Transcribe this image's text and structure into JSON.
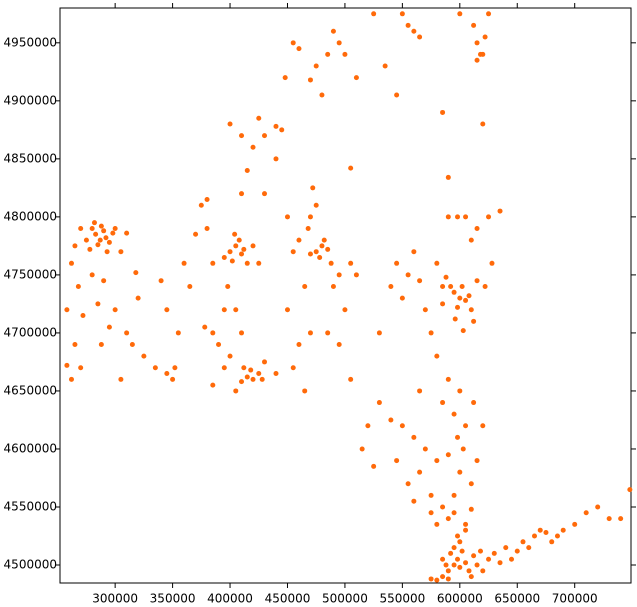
{
  "chart_data": {
    "type": "scatter",
    "xlim": [
      252000,
      749000
    ],
    "ylim": [
      4484500,
      4980000
    ],
    "xticks": [
      300000,
      350000,
      400000,
      450000,
      500000,
      550000,
      600000,
      650000,
      700000
    ],
    "yticks": [
      4500000,
      4550000,
      4600000,
      4650000,
      4700000,
      4750000,
      4800000,
      4850000,
      4900000,
      4950000
    ],
    "x": [
      283000,
      287000,
      290000,
      285000,
      292000,
      280000,
      295000,
      288000,
      278000,
      298000,
      282000,
      293000,
      275000,
      300000,
      270000,
      265000,
      310000,
      305000,
      262000,
      268000,
      272000,
      258000,
      265000,
      258000,
      262000,
      270000,
      280000,
      290000,
      285000,
      295000,
      288000,
      300000,
      310000,
      318000,
      320000,
      305000,
      315000,
      325000,
      335000,
      345000,
      350000,
      352000,
      340000,
      345000,
      355000,
      360000,
      365000,
      370000,
      375000,
      380000,
      385000,
      378000,
      385000,
      390000,
      395000,
      385000,
      400000,
      405000,
      410000,
      402000,
      408000,
      395000,
      412000,
      404000,
      415000,
      420000,
      398000,
      405000,
      410000,
      400000,
      395000,
      425000,
      415000,
      420000,
      425000,
      418000,
      410000,
      428000,
      412000,
      430000,
      405000,
      440000,
      400000,
      410000,
      420000,
      425000,
      430000,
      440000,
      445000,
      448000,
      415000,
      430000,
      410000,
      380000,
      440000,
      450000,
      455000,
      460000,
      465000,
      470000,
      460000,
      455000,
      450000,
      465000,
      470000,
      472000,
      468000,
      475000,
      475000,
      480000,
      478000,
      485000,
      470000,
      482000,
      488000,
      495000,
      490000,
      500000,
      485000,
      495000,
      505000,
      505000,
      510000,
      455000,
      460000,
      470000,
      475000,
      480000,
      485000,
      490000,
      495000,
      500000,
      505000,
      510000,
      525000,
      535000,
      545000,
      550000,
      555000,
      560000,
      565000,
      585000,
      590000,
      600000,
      612000,
      615000,
      618000,
      620000,
      622000,
      625000,
      615000,
      620000,
      530000,
      540000,
      545000,
      550000,
      555000,
      560000,
      565000,
      570000,
      575000,
      580000,
      585000,
      590000,
      598000,
      605000,
      610000,
      615000,
      625000,
      635000,
      628000,
      622000,
      595000,
      600000,
      605000,
      598000,
      602000,
      608000,
      592000,
      610000,
      588000,
      615000,
      596000,
      603000,
      585000,
      612000,
      580000,
      590000,
      600000,
      585000,
      595000,
      605000,
      598000,
      603000,
      590000,
      580000,
      570000,
      560000,
      550000,
      540000,
      530000,
      520000,
      515000,
      525000,
      545000,
      555000,
      565000,
      575000,
      585000,
      595000,
      610000,
      615000,
      620000,
      612000,
      600000,
      590000,
      595000,
      605000,
      610000,
      580000,
      575000,
      560000,
      565000,
      585000,
      588000,
      590000,
      592000,
      595000,
      598000,
      600000,
      602000,
      605000,
      600000,
      595000,
      590000,
      585000,
      580000,
      575000,
      608000,
      612000,
      615000,
      618000,
      620000,
      625000,
      630000,
      635000,
      640000,
      645000,
      650000,
      655000,
      660000,
      665000,
      670000,
      675000,
      680000,
      685000,
      690000,
      700000,
      710000,
      720000,
      730000,
      740000,
      748000,
      598000,
      605000,
      610000
    ],
    "series": [
      {
        "color": "#ff6a0a",
        "values": [
          4785000,
          4780000,
          4788000,
          4776000,
          4782000,
          4790000,
          4778000,
          4792000,
          4772000,
          4786000,
          4795000,
          4770000,
          4780000,
          4790000,
          4790000,
          4775000,
          4786000,
          4770000,
          4760000,
          4740000,
          4715000,
          4720000,
          4690000,
          4672000,
          4660000,
          4670000,
          4750000,
          4745000,
          4725000,
          4705000,
          4690000,
          4720000,
          4700000,
          4752000,
          4730000,
          4660000,
          4690000,
          4680000,
          4670000,
          4665000,
          4660000,
          4670000,
          4745000,
          4720000,
          4700000,
          4760000,
          4740000,
          4785000,
          4810000,
          4790000,
          4760000,
          4705000,
          4700000,
          4690000,
          4670000,
          4655000,
          4770000,
          4775000,
          4768000,
          4762000,
          4780000,
          4765000,
          4772000,
          4785000,
          4760000,
          4775000,
          4740000,
          4720000,
          4700000,
          4680000,
          4720000,
          4760000,
          4662000,
          4660000,
          4665000,
          4668000,
          4658000,
          4660000,
          4670000,
          4675000,
          4650000,
          4665000,
          4880000,
          4870000,
          4860000,
          4885000,
          4870000,
          4878000,
          4875000,
          4920000,
          4840000,
          4820000,
          4820000,
          4815000,
          4850000,
          4800000,
          4770000,
          4780000,
          4740000,
          4700000,
          4690000,
          4670000,
          4720000,
          4650000,
          4800000,
          4825000,
          4790000,
          4810000,
          4770000,
          4775000,
          4765000,
          4772000,
          4768000,
          4780000,
          4760000,
          4750000,
          4740000,
          4720000,
          4700000,
          4690000,
          4660000,
          4760000,
          4750000,
          4950000,
          4945000,
          4918000,
          4930000,
          4905000,
          4940000,
          4960000,
          4950000,
          4940000,
          4842000,
          4920000,
          4975000,
          4930000,
          4905000,
          4975000,
          4965000,
          4960000,
          4955000,
          4890000,
          4834000,
          4975000,
          4965000,
          4950000,
          4940000,
          4880000,
          4955000,
          4975000,
          4935000,
          4940000,
          4700000,
          4740000,
          4760000,
          4730000,
          4750000,
          4770000,
          4745000,
          4720000,
          4700000,
          4760000,
          4740000,
          4800000,
          4800000,
          4800000,
          4780000,
          4790000,
          4800000,
          4805000,
          4760000,
          4740000,
          4735000,
          4730000,
          4728000,
          4722000,
          4740000,
          4732000,
          4740000,
          4720000,
          4748000,
          4745000,
          4712000,
          4702000,
          4725000,
          4710000,
          4680000,
          4660000,
          4650000,
          4640000,
          4630000,
          4620000,
          4610000,
          4600000,
          4595000,
          4590000,
          4600000,
          4610000,
          4620000,
          4625000,
          4640000,
          4620000,
          4600000,
          4585000,
          4590000,
          4570000,
          4580000,
          4560000,
          4550000,
          4560000,
          4570000,
          4590000,
          4620000,
          4640000,
          4580000,
          4540000,
          4545000,
          4535000,
          4548000,
          4535000,
          4545000,
          4555000,
          4650000,
          4505000,
          4500000,
          4495000,
          4510000,
          4500000,
          4505000,
          4498000,
          4512000,
          4502000,
          4520000,
          4515000,
          4488000,
          4490000,
          4487000,
          4488000,
          4495000,
          4508000,
          4500000,
          4512000,
          4495000,
          4505000,
          4510000,
          4502000,
          4515000,
          4505000,
          4512000,
          4520000,
          4515000,
          4525000,
          4530000,
          4528000,
          4520000,
          4525000,
          4530000,
          4535000,
          4545000,
          4550000,
          4540000,
          4540000,
          4565000,
          4525000,
          4530000,
          4490000
        ]
      }
    ]
  }
}
